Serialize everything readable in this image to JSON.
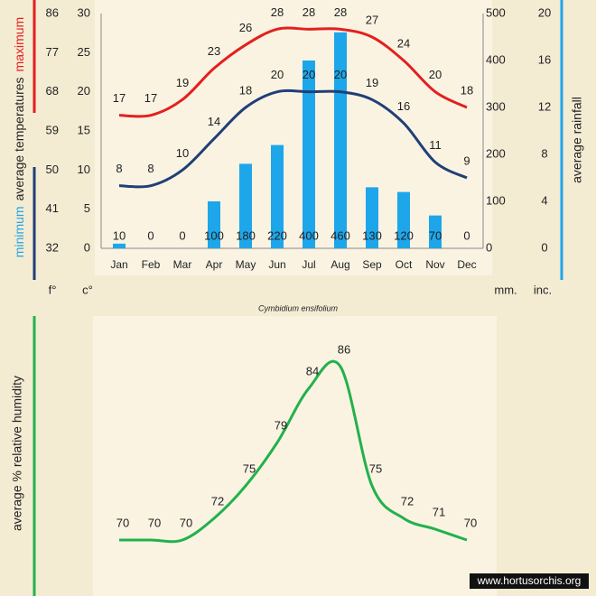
{
  "chart_data": [
    {
      "type": "combo",
      "title": "Cymbidium ensifolium",
      "categories": [
        "Jan",
        "Feb",
        "Mar",
        "Apr",
        "May",
        "Jun",
        "Jul",
        "Aug",
        "Sep",
        "Oct",
        "Nov",
        "Dec"
      ],
      "ylabel": "average temperatures",
      "yunit": "c°",
      "ylim": [
        0,
        30
      ],
      "yticks": [
        0,
        5,
        10,
        15,
        20,
        25,
        30
      ],
      "yfunit": "f°",
      "yflim": [
        32,
        86
      ],
      "yfticks": [
        32,
        41,
        50,
        59,
        68,
        77,
        86
      ],
      "y2unit": "mm.",
      "y2lim": [
        0,
        500
      ],
      "y2ticks": [
        0,
        100,
        200,
        300,
        400,
        500
      ],
      "y2incunit": "inc.",
      "y2inclim": [
        0,
        20
      ],
      "y2incticks": [
        0,
        4,
        8,
        12,
        16,
        20
      ],
      "series": [
        {
          "name": "maximum",
          "type": "line",
          "color": "#e3201e",
          "values": [
            17,
            17,
            19,
            23,
            26,
            28,
            28,
            28,
            27,
            24,
            20,
            18
          ]
        },
        {
          "name": "minimum",
          "type": "line",
          "color": "#203f78",
          "values": [
            8,
            8,
            10,
            14,
            18,
            20,
            20,
            20,
            19,
            16,
            11,
            9
          ]
        },
        {
          "name": "average rainfall",
          "type": "bar",
          "axis": "y2",
          "color": "#1ea6ea",
          "values": [
            10,
            0,
            0,
            100,
            180,
            220,
            400,
            460,
            130,
            120,
            70,
            0
          ]
        }
      ]
    },
    {
      "type": "line",
      "ylabel": "average %  relative humidity",
      "series": [
        {
          "color": "#22b14c",
          "values": [
            70,
            70,
            70,
            72,
            75,
            79,
            84,
            86,
            75,
            72,
            71,
            70
          ]
        }
      ],
      "source": "www.hortusorchis.org"
    }
  ]
}
